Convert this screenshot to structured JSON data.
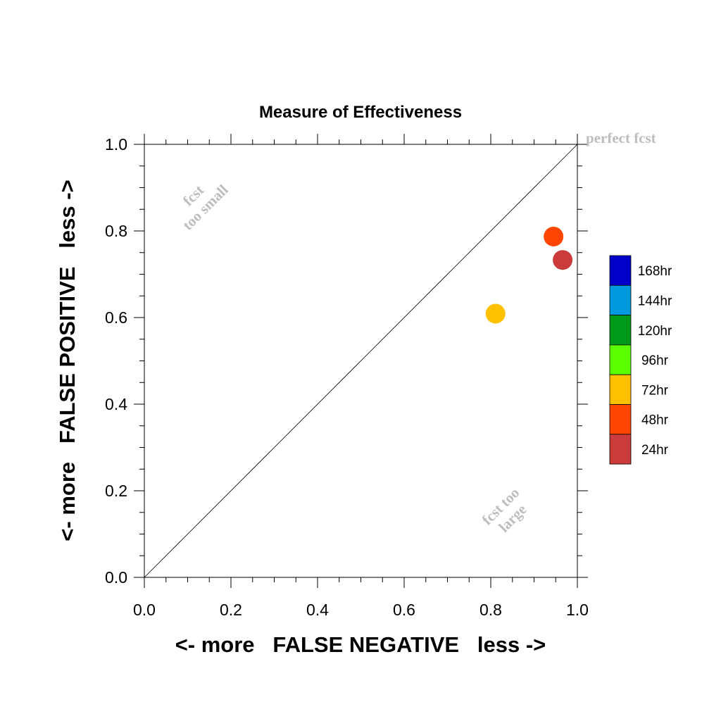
{
  "chart_data": {
    "type": "scatter",
    "title": "Measure of Effectiveness",
    "xlabel": "<- more   FALSE NEGATIVE   less ->",
    "ylabel": "<- more   FALSE POSITIVE   less ->",
    "xlim": [
      0,
      1
    ],
    "ylim": [
      0,
      1
    ],
    "xticks": [
      "0.0",
      "0.2",
      "0.4",
      "0.6",
      "0.8",
      "1.0"
    ],
    "yticks": [
      "0.0",
      "0.2",
      "0.4",
      "0.6",
      "0.8",
      "1.0"
    ],
    "diagonal_reference": true,
    "grid": false,
    "legend_position": "right",
    "annotations": {
      "perfect": "perfect fcst",
      "too_small": [
        "fcst",
        "too small"
      ],
      "too_large": [
        "fcst too",
        "large"
      ],
      "color": "#bdbdbd"
    },
    "series": [
      {
        "name": "24hr",
        "color": "#cc3b3b",
        "x": [
          0.966
        ],
        "y": [
          0.733
        ]
      },
      {
        "name": "48hr",
        "color": "#ff4500",
        "x": [
          0.945
        ],
        "y": [
          0.787
        ]
      },
      {
        "name": "72hr",
        "color": "#ffc000",
        "x": [
          0.811
        ],
        "y": [
          0.609
        ]
      }
    ],
    "legend": [
      {
        "label": "168hr",
        "color": "#0000c8"
      },
      {
        "label": "144hr",
        "color": "#0099dd"
      },
      {
        "label": "120hr",
        "color": "#009a1a"
      },
      {
        "label": "96hr",
        "color": "#5cff00"
      },
      {
        "label": "72hr",
        "color": "#ffc000"
      },
      {
        "label": "48hr",
        "color": "#ff4500"
      },
      {
        "label": "24hr",
        "color": "#cc3b3b"
      }
    ]
  }
}
